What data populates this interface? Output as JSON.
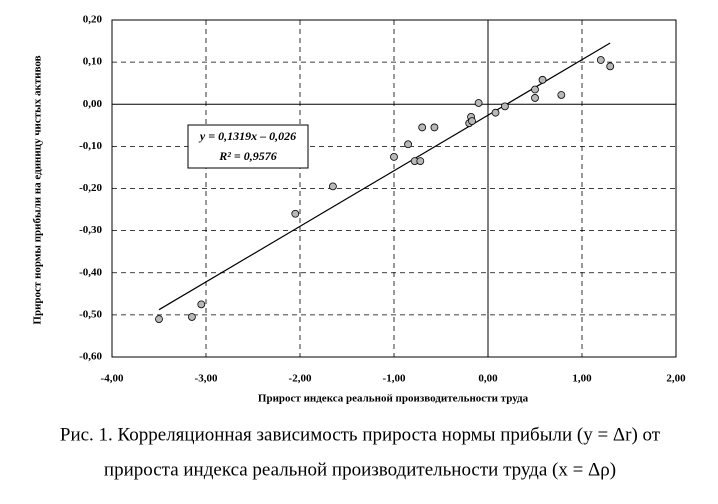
{
  "chart_data": {
    "type": "scatter",
    "x_label": "Прирост индекса реальной производительности труда",
    "y_label": "Прирост нормы прибыли на единицу чистых активов",
    "caption": [
      "Рис. 1. Корреляционная зависимость прироста нормы прибыли (y = Δr) от",
      "прироста индекса реальной производительности труда (x = Δρ)"
    ],
    "x": [
      -3.5,
      -3.15,
      -3.05,
      -2.05,
      -1.65,
      -1.0,
      -0.85,
      -0.78,
      -0.72,
      -0.7,
      -0.57,
      -0.2,
      -0.18,
      -0.17,
      -0.1,
      0.08,
      0.18,
      0.5,
      0.5,
      0.58,
      0.78,
      1.2,
      1.3
    ],
    "values": [
      -0.51,
      -0.505,
      -0.475,
      -0.26,
      -0.195,
      -0.125,
      -0.095,
      -0.135,
      -0.135,
      -0.055,
      -0.055,
      -0.045,
      -0.03,
      -0.04,
      0.003,
      -0.02,
      -0.005,
      0.035,
      0.015,
      0.058,
      0.022,
      0.105,
      0.09
    ],
    "color": "#b8b8b8",
    "trendline": {
      "slope": 0.1319,
      "intercept": -0.026,
      "xrange": [
        -3.5,
        1.3
      ],
      "equation": "y = 0,1319x – 0,026",
      "r2": "R² = 0,9576"
    },
    "xlim": [
      -4,
      2
    ],
    "xticks": [
      {
        "value": -4,
        "label": "-4,00"
      },
      {
        "value": -3,
        "label": "-3,00"
      },
      {
        "value": -2,
        "label": "-2,00"
      },
      {
        "value": -1,
        "label": "-1,00"
      },
      {
        "value": 0,
        "label": "0,00"
      },
      {
        "value": 1,
        "label": "1,00"
      },
      {
        "value": 2,
        "label": "2,00"
      }
    ],
    "ylim": [
      -0.6,
      0.2
    ],
    "yticks": [
      {
        "value": 0.2,
        "label": "0,20"
      },
      {
        "value": 0.1,
        "label": "0,10"
      },
      {
        "value": 0,
        "label": "0,00"
      },
      {
        "value": -0.1,
        "label": "-0,10"
      },
      {
        "value": -0.2,
        "label": "-0,20"
      },
      {
        "value": -0.3,
        "label": "-0,30"
      },
      {
        "value": -0.4,
        "label": "-0,40"
      },
      {
        "value": -0.5,
        "label": "-0,50"
      },
      {
        "value": -0.6,
        "label": "-0,60"
      }
    ],
    "grid": true
  }
}
